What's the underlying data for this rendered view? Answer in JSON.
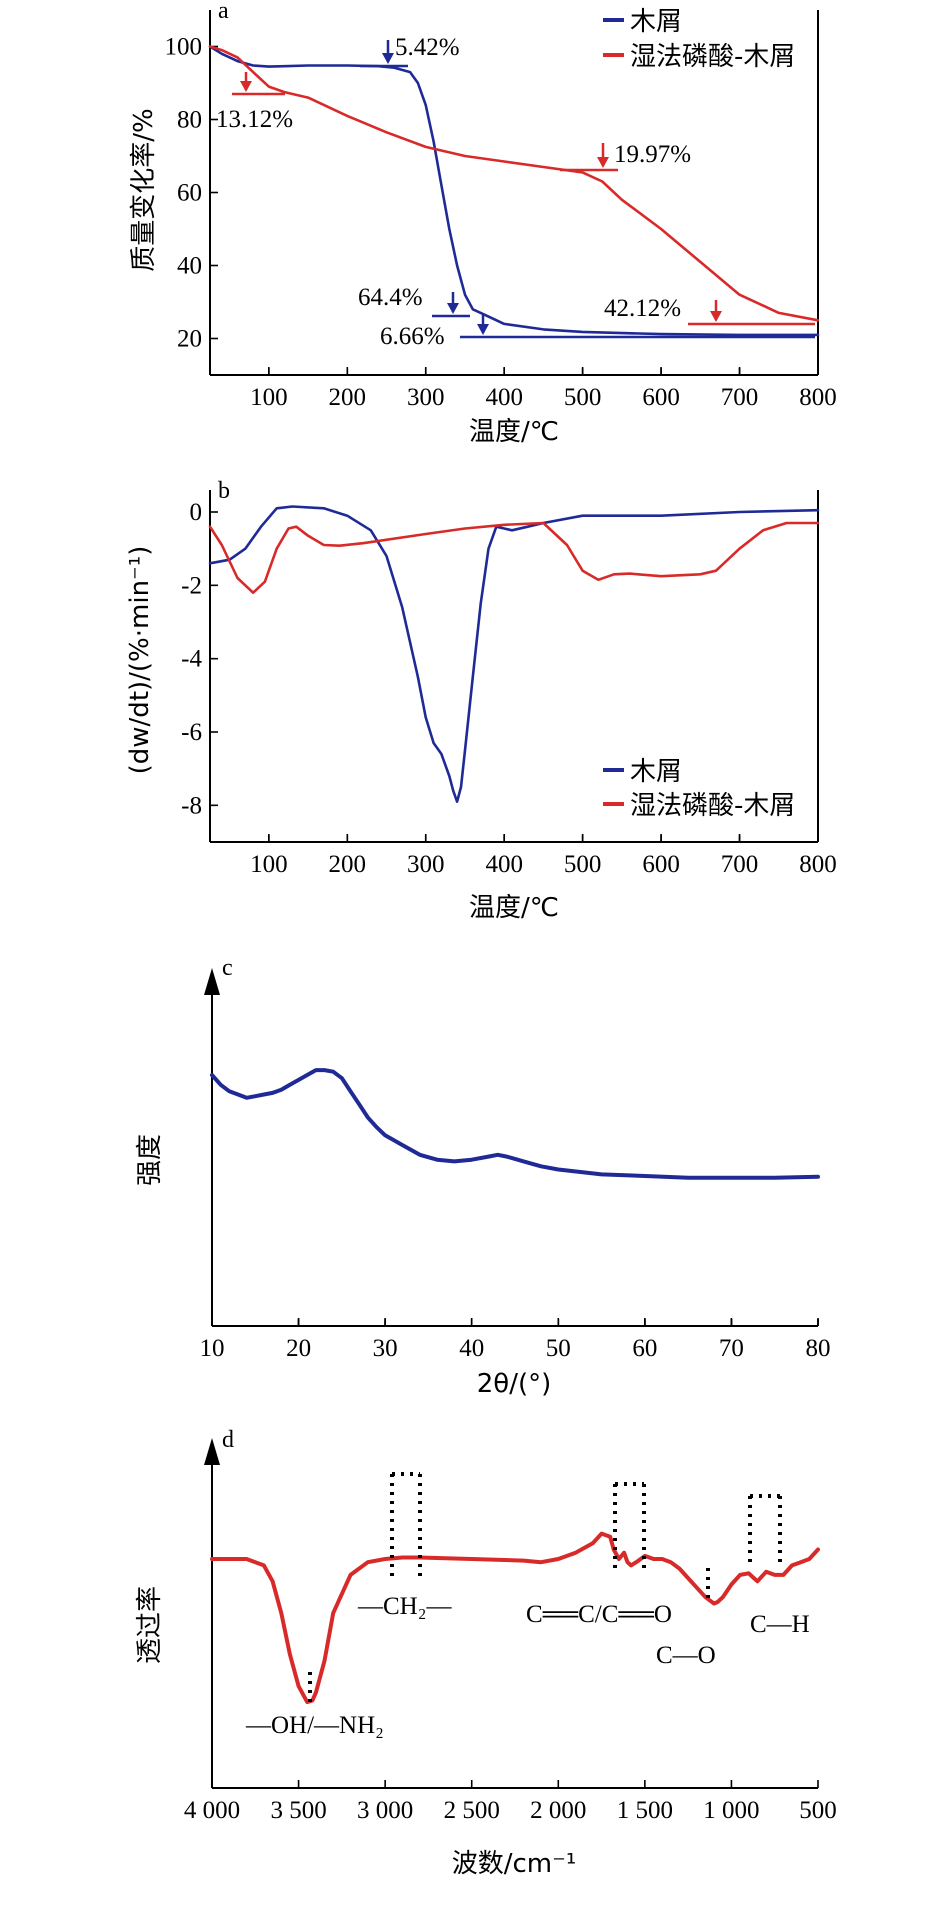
{
  "colors": {
    "wood": "#1f2a96",
    "acid": "#d92a2a",
    "axis": "#000000"
  },
  "chart_data": [
    {
      "panel": "a",
      "type": "line",
      "xlabel": "温度/℃",
      "ylabel": "质量变化率/%",
      "xlim": [
        25,
        800
      ],
      "ylim": [
        10,
        110
      ],
      "xticks": [
        "100",
        "200",
        "300",
        "400",
        "500",
        "600",
        "700",
        "800"
      ],
      "yticks": [
        "20",
        "40",
        "60",
        "80",
        "100"
      ],
      "legend": {
        "position": "top-right",
        "entries": [
          "木屑",
          "湿法磷酸-木屑"
        ]
      },
      "series": [
        {
          "name": "木屑",
          "color_key": "wood",
          "x": [
            25,
            40,
            60,
            80,
            100,
            120,
            150,
            200,
            240,
            260,
            280,
            290,
            300,
            310,
            320,
            330,
            340,
            350,
            360,
            370,
            380,
            400,
            450,
            500,
            600,
            700,
            800
          ],
          "y": [
            100,
            98,
            96,
            94.8,
            94.5,
            94.6,
            94.8,
            94.8,
            94.6,
            94.2,
            93,
            90,
            84,
            74,
            62,
            50,
            40,
            32,
            28,
            27,
            26,
            24,
            22.5,
            21.8,
            21.2,
            21,
            21
          ]
        },
        {
          "name": "湿法磷酸-木屑",
          "color_key": "acid",
          "x": [
            25,
            40,
            60,
            80,
            100,
            120,
            150,
            200,
            250,
            300,
            350,
            400,
            450,
            500,
            525,
            550,
            600,
            650,
            700,
            750,
            800
          ],
          "y": [
            100,
            99,
            97,
            93,
            89,
            87.5,
            86,
            81,
            76.5,
            72.5,
            70,
            68.5,
            67,
            65.5,
            63,
            58,
            50,
            41,
            32,
            27,
            25
          ]
        }
      ],
      "annotations": [
        {
          "text": "5.42%",
          "at": [
            255,
            94
          ],
          "color_key": "wood"
        },
        {
          "text": "13.12%",
          "at": [
            70,
            87
          ],
          "color_key": "acid"
        },
        {
          "text": "19.97%",
          "at": [
            525,
            66
          ],
          "color_key": "acid"
        },
        {
          "text": "64.4%",
          "at": [
            340,
            27
          ],
          "color_key": "wood"
        },
        {
          "text": "6.66%",
          "at": [
            380,
            21
          ],
          "color_key": "wood"
        },
        {
          "text": "42.12%",
          "at": [
            675,
            25
          ],
          "color_key": "acid"
        }
      ]
    },
    {
      "panel": "b",
      "type": "line",
      "xlabel": "温度/℃",
      "ylabel": "(dw/dt)/(%·min⁻¹)",
      "xlim": [
        25,
        800
      ],
      "ylim": [
        -9,
        0.6
      ],
      "xticks": [
        "100",
        "200",
        "300",
        "400",
        "500",
        "600",
        "700",
        "800"
      ],
      "yticks": [
        "-8",
        "-6",
        "-4",
        "-2",
        "0"
      ],
      "legend": {
        "position": "bottom-right",
        "entries": [
          "木屑",
          "湿法磷酸-木屑"
        ]
      },
      "series": [
        {
          "name": "木屑",
          "color_key": "wood",
          "x": [
            25,
            50,
            70,
            90,
            110,
            130,
            170,
            200,
            230,
            250,
            270,
            290,
            300,
            310,
            320,
            330,
            335,
            340,
            345,
            350,
            360,
            370,
            380,
            390,
            400,
            410,
            430,
            450,
            500,
            600,
            700,
            800
          ],
          "y": [
            -1.4,
            -1.3,
            -1.0,
            -0.4,
            0.1,
            0.15,
            0.1,
            -0.1,
            -0.5,
            -1.2,
            -2.6,
            -4.5,
            -5.6,
            -6.3,
            -6.6,
            -7.2,
            -7.6,
            -7.9,
            -7.5,
            -6.5,
            -4.5,
            -2.5,
            -1.0,
            -0.4,
            -0.45,
            -0.5,
            -0.4,
            -0.3,
            -0.1,
            -0.1,
            0,
            0.05
          ]
        },
        {
          "name": "湿法磷酸-木屑",
          "color_key": "acid",
          "x": [
            25,
            40,
            60,
            80,
            95,
            110,
            125,
            135,
            150,
            170,
            190,
            220,
            300,
            350,
            400,
            450,
            480,
            500,
            520,
            540,
            560,
            600,
            650,
            670,
            700,
            730,
            760,
            800
          ],
          "y": [
            -0.4,
            -0.9,
            -1.8,
            -2.2,
            -1.9,
            -1.0,
            -0.45,
            -0.4,
            -0.65,
            -0.9,
            -0.92,
            -0.85,
            -0.6,
            -0.45,
            -0.35,
            -0.3,
            -0.9,
            -1.6,
            -1.85,
            -1.7,
            -1.68,
            -1.75,
            -1.7,
            -1.6,
            -1.0,
            -0.5,
            -0.3,
            -0.3
          ]
        }
      ]
    },
    {
      "panel": "c",
      "type": "line",
      "xlabel": "2θ/(°)",
      "ylabel": "强度",
      "xlim": [
        10,
        80
      ],
      "ylim": [
        0,
        1
      ],
      "xticks": [
        "10",
        "20",
        "30",
        "40",
        "50",
        "60",
        "70",
        "80"
      ],
      "series": [
        {
          "name": "",
          "color_key": "wood",
          "x": [
            10,
            11,
            12,
            13,
            14,
            15,
            16,
            17,
            18,
            19,
            20,
            21,
            22,
            23,
            24,
            25,
            26,
            27,
            28,
            29,
            30,
            32,
            34,
            36,
            38,
            40,
            42,
            43,
            44,
            46,
            48,
            50,
            55,
            60,
            65,
            70,
            75,
            80
          ],
          "y": [
            0.77,
            0.74,
            0.72,
            0.71,
            0.7,
            0.705,
            0.71,
            0.715,
            0.725,
            0.74,
            0.755,
            0.77,
            0.785,
            0.785,
            0.78,
            0.76,
            0.72,
            0.68,
            0.64,
            0.61,
            0.585,
            0.555,
            0.525,
            0.51,
            0.505,
            0.51,
            0.52,
            0.525,
            0.52,
            0.505,
            0.49,
            0.48,
            0.465,
            0.46,
            0.455,
            0.455,
            0.455,
            0.458
          ]
        }
      ]
    },
    {
      "panel": "d",
      "type": "line",
      "xlabel": "波数/cm⁻¹",
      "ylabel": "透过率",
      "xlim": [
        4000,
        500
      ],
      "ylim": [
        0,
        1
      ],
      "xticks": [
        "4 000",
        "3 500",
        "3 000",
        "2 500",
        "2 000",
        "1 500",
        "1 000",
        "500"
      ],
      "series": [
        {
          "name": "",
          "color_key": "acid",
          "x": [
            4000,
            3900,
            3800,
            3700,
            3650,
            3600,
            3550,
            3500,
            3450,
            3420,
            3400,
            3350,
            3300,
            3200,
            3100,
            3000,
            2900,
            2800,
            2500,
            2200,
            2100,
            2000,
            1900,
            1800,
            1750,
            1700,
            1680,
            1650,
            1620,
            1600,
            1580,
            1550,
            1500,
            1450,
            1400,
            1350,
            1300,
            1250,
            1200,
            1150,
            1100,
            1080,
            1050,
            1000,
            950,
            900,
            870,
            850,
            800,
            750,
            700,
            650,
            600,
            550,
            500
          ],
          "y": [
            0.72,
            0.72,
            0.72,
            0.7,
            0.65,
            0.55,
            0.42,
            0.32,
            0.27,
            0.275,
            0.3,
            0.4,
            0.55,
            0.67,
            0.71,
            0.72,
            0.725,
            0.725,
            0.72,
            0.715,
            0.71,
            0.72,
            0.74,
            0.77,
            0.8,
            0.79,
            0.75,
            0.72,
            0.74,
            0.71,
            0.7,
            0.71,
            0.73,
            0.72,
            0.72,
            0.71,
            0.69,
            0.66,
            0.63,
            0.6,
            0.58,
            0.585,
            0.6,
            0.64,
            0.67,
            0.675,
            0.66,
            0.65,
            0.68,
            0.67,
            0.67,
            0.7,
            0.71,
            0.72,
            0.75
          ]
        }
      ],
      "band_labels": [
        "—CH₂—",
        "C══C/C══O",
        "C—O",
        "C—H",
        "—OH/—NH₂"
      ]
    }
  ],
  "panel_labels": [
    "a",
    "b",
    "c",
    "d"
  ]
}
